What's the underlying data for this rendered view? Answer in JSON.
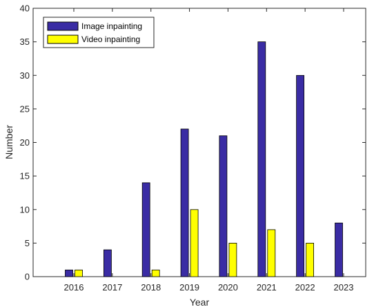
{
  "chart_data": {
    "type": "bar",
    "title": "",
    "xlabel": "Year",
    "ylabel": "Number",
    "categories": [
      "2016",
      "2017",
      "2018",
      "2019",
      "2020",
      "2021",
      "2022",
      "2023"
    ],
    "series": [
      {
        "name": "Image inpainting",
        "values": [
          1,
          4,
          14,
          22,
          21,
          35,
          30,
          8
        ],
        "color": "#3a2ca4"
      },
      {
        "name": "Video inpainting",
        "values": [
          1,
          0,
          1,
          10,
          5,
          7,
          5,
          0
        ],
        "color": "#ffff00"
      }
    ],
    "ylim": [
      0,
      40
    ],
    "yticks": [
      0,
      5,
      10,
      15,
      20,
      25,
      30,
      35,
      40
    ],
    "grid": false,
    "legend_position": "top-left"
  }
}
